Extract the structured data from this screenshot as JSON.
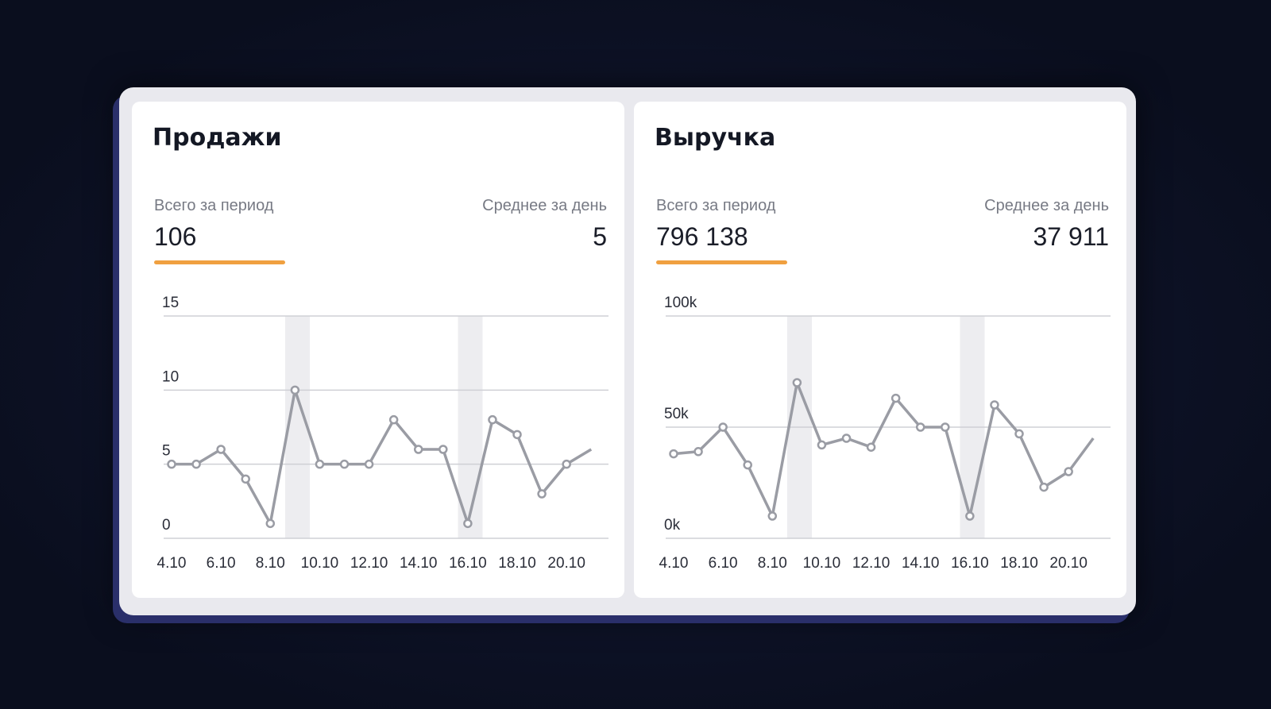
{
  "chart_data": [
    {
      "type": "line",
      "title": "Продажи",
      "total_label": "Всего за период",
      "total": 106,
      "avg_label": "Среднее за день",
      "avg": 5,
      "categories": [
        "4.10",
        null,
        "6.10",
        null,
        "8.10",
        null,
        "10.10",
        null,
        "12.10",
        null,
        "14.10",
        null,
        "16.10",
        null,
        "18.10",
        null,
        "20.10",
        null
      ],
      "series": [
        {
          "color": "#9a9ca4",
          "values": [
            5,
            5,
            6,
            4,
            1,
            10,
            5,
            5,
            5,
            8,
            6,
            6,
            1,
            8,
            7,
            3,
            5,
            6
          ]
        }
      ],
      "ylim": [
        0,
        15
      ],
      "yticks": [
        0,
        5,
        10,
        15
      ],
      "grid": true,
      "accent": "#f0a040"
    },
    {
      "type": "line",
      "title": "Выручка",
      "total_label": "Всего за период",
      "total": "796 138",
      "avg_label": "Среднее за день",
      "avg": "37 911",
      "categories": [
        "4.10",
        null,
        "6.10",
        null,
        "8.10",
        null,
        "10.10",
        null,
        "12.10",
        null,
        "14.10",
        null,
        "16.10",
        null,
        "18.10",
        null,
        "20.10",
        null
      ],
      "series": [
        {
          "color": "#9a9ca4",
          "values": [
            38000,
            39000,
            50000,
            33000,
            10000,
            70000,
            42000,
            45000,
            41000,
            63000,
            50000,
            50000,
            10000,
            60000,
            47000,
            23000,
            30000,
            45000
          ]
        }
      ],
      "ylim": [
        0,
        100000
      ],
      "yticks": [
        {
          "value": 0,
          "label": "0k"
        },
        {
          "value": 50000,
          "label": "50k"
        },
        {
          "value": 100000,
          "label": "100k"
        }
      ],
      "grid": true,
      "accent": "#f0a040"
    }
  ]
}
